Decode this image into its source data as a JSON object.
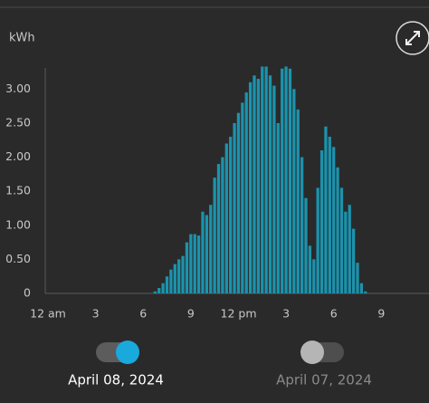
{
  "chart_data": {
    "type": "bar",
    "y_label": "kWh",
    "color": "#1b93ad",
    "xlim": [
      0,
      24
    ],
    "bar_width": 0.25,
    "xticks": [
      {
        "value": 0,
        "label": "12 am"
      },
      3,
      6,
      9,
      {
        "value": 12,
        "label": "12 pm"
      },
      {
        "value": 15,
        "label": "3"
      },
      {
        "value": 18,
        "label": "6"
      },
      {
        "value": 21,
        "label": "9"
      }
    ],
    "ylim": [
      0,
      3.35
    ],
    "yticks": [
      0,
      {
        "value": 0.5,
        "label": "0.50"
      },
      {
        "value": 1,
        "label": "1.00"
      },
      {
        "value": 1.5,
        "label": "1.50"
      },
      {
        "value": 2,
        "label": "2.00"
      },
      {
        "value": 2.5,
        "label": "2.50"
      },
      {
        "value": 3,
        "label": "3.00"
      }
    ],
    "x": [
      6.75,
      7,
      7.25,
      7.5,
      7.75,
      8,
      8.25,
      8.5,
      8.75,
      9,
      9.25,
      9.5,
      9.75,
      10,
      10.25,
      10.5,
      10.75,
      11,
      11.25,
      11.5,
      11.75,
      12,
      12.25,
      12.5,
      12.75,
      13,
      13.25,
      13.5,
      13.75,
      14,
      14.25,
      14.5,
      14.75,
      15,
      15.25,
      15.5,
      15.75,
      16,
      16.25,
      16.5,
      16.75,
      17,
      17.25,
      17.5,
      17.75,
      18,
      18.25,
      18.5,
      18.75,
      19,
      19.25,
      19.5,
      19.75,
      20
    ],
    "values": [
      0.03,
      0.08,
      0.15,
      0.25,
      0.35,
      0.43,
      0.5,
      0.55,
      0.75,
      0.87,
      0.87,
      0.85,
      1.2,
      1.15,
      1.3,
      1.7,
      1.9,
      2.0,
      2.2,
      2.3,
      2.5,
      2.65,
      2.8,
      2.95,
      3.1,
      3.2,
      3.15,
      3.33,
      3.33,
      3.2,
      3.05,
      2.5,
      3.3,
      3.33,
      3.3,
      3.0,
      2.7,
      2.0,
      1.4,
      0.7,
      0.5,
      1.55,
      2.1,
      2.45,
      2.3,
      2.15,
      1.85,
      1.55,
      1.2,
      1.3,
      0.95,
      0.45,
      0.15,
      0.03
    ]
  },
  "controls": [
    {
      "label": "April 08, 2024",
      "active": true
    },
    {
      "label": "April 07, 2024",
      "active": false
    }
  ]
}
